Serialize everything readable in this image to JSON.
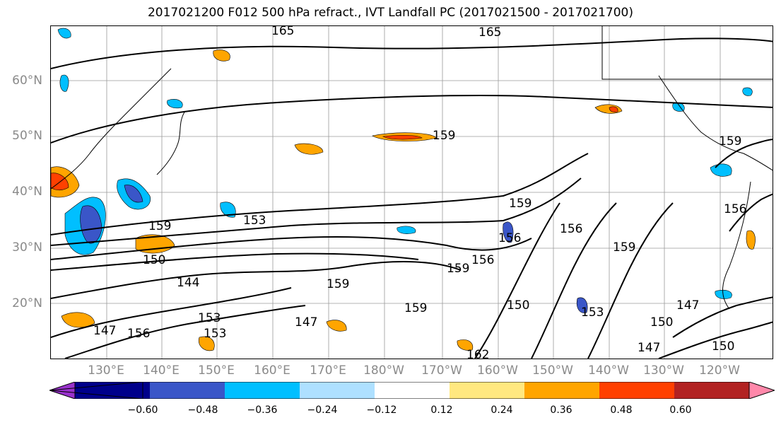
{
  "title": "2017021200 F012 500 hPa refract., IVT Landfall PC (2017021500 - 2017021700)",
  "lat_labels": [
    "60°N",
    "50°N",
    "40°N",
    "30°N",
    "20°N"
  ],
  "lon_labels": [
    "130°E",
    "140°E",
    "150°E",
    "160°E",
    "170°E",
    "180°W",
    "170°W",
    "160°W",
    "150°W",
    "140°W",
    "130°W",
    "120°W"
  ],
  "contour_labels": [
    "165",
    "165",
    "159",
    "159",
    "159",
    "153",
    "150",
    "144",
    "147",
    "156",
    "153",
    "153",
    "147",
    "159",
    "159",
    "159",
    "156",
    "159",
    "156",
    "159",
    "156",
    "150",
    "153",
    "147",
    "150",
    "147",
    "150",
    "156",
    "162"
  ],
  "colorbar": {
    "ticks": [
      "−0.60",
      "−0.48",
      "−0.36",
      "−0.24",
      "−0.12",
      "0.12",
      "0.24",
      "0.36",
      "0.48",
      "0.60"
    ],
    "colors": [
      "#9932cc",
      "#00008b",
      "#3a56c8",
      "#00bfff",
      "#aee0ff",
      "#ffffff",
      "#ffe880",
      "#ffa500",
      "#ff4000",
      "#b22222",
      "#ff88aa"
    ]
  }
}
